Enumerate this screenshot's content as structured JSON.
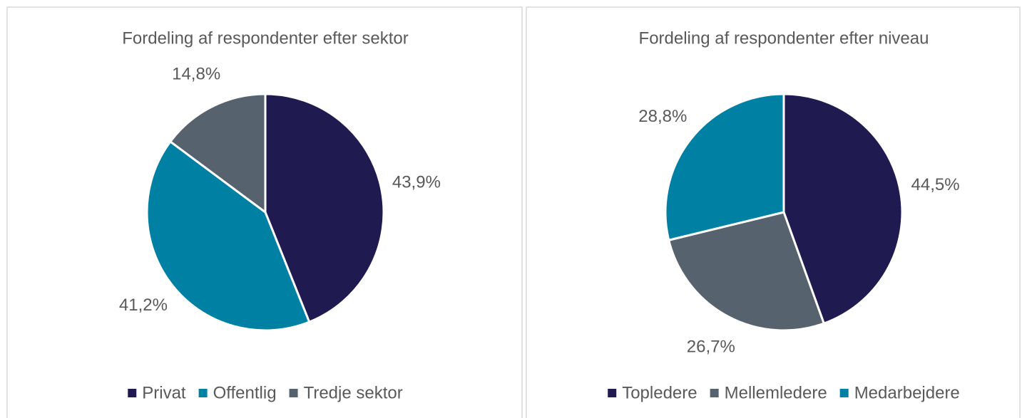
{
  "chart_data": [
    {
      "type": "pie",
      "title": "Fordeling af respondenter efter sektor",
      "categories": [
        "Privat",
        "Offentlig",
        "Tredje sektor"
      ],
      "values": [
        43.9,
        41.2,
        14.8
      ],
      "value_labels": [
        "43,9%",
        "41,2%",
        "14,8%"
      ],
      "colors": [
        "#1f1a4f",
        "#0081a3",
        "#56626e"
      ]
    },
    {
      "type": "pie",
      "title": "Fordeling af respondenter efter niveau",
      "categories": [
        "Topledere",
        "Mellemledere",
        "Medarbejdere"
      ],
      "values": [
        44.5,
        26.7,
        28.8
      ],
      "value_labels": [
        "44,5%",
        "26,7%",
        "28,8%"
      ],
      "colors": [
        "#1f1a4f",
        "#56626e",
        "#0081a3"
      ]
    }
  ]
}
